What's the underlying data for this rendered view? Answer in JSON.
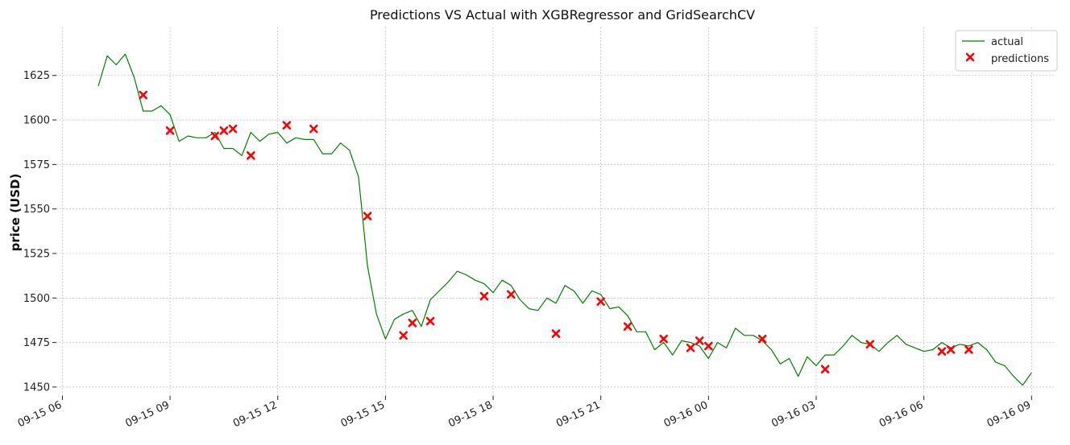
{
  "chart_data": {
    "type": "line",
    "title": "Predictions VS Actual with XGBRegressor and GridSearchCV",
    "xlabel": "",
    "ylabel": "price (USD)",
    "ylim": [
      1445,
      1652
    ],
    "xlim": [
      "2000-09-15 05:50",
      "2000-09-16 09:40"
    ],
    "yticks": [
      1450,
      1475,
      1500,
      1525,
      1550,
      1575,
      1600,
      1625
    ],
    "xticks": [
      {
        "t": "2000-09-15 06:00",
        "label": "09-15 06"
      },
      {
        "t": "2000-09-15 09:00",
        "label": "09-15 09"
      },
      {
        "t": "2000-09-15 12:00",
        "label": "09-15 12"
      },
      {
        "t": "2000-09-15 15:00",
        "label": "09-15 15"
      },
      {
        "t": "2000-09-15 18:00",
        "label": "09-15 18"
      },
      {
        "t": "2000-09-15 21:00",
        "label": "09-15 21"
      },
      {
        "t": "2000-09-16 00:00",
        "label": "09-16 00"
      },
      {
        "t": "2000-09-16 03:00",
        "label": "09-16 03"
      },
      {
        "t": "2000-09-16 06:00",
        "label": "09-16 06"
      },
      {
        "t": "2000-09-16 09:00",
        "label": "09-16 09"
      }
    ],
    "grid": true,
    "legend_position": "top-right",
    "colors": {
      "actual": "#008000",
      "predictions": "#ff0000"
    },
    "series": [
      {
        "name": "actual",
        "type": "line",
        "color": "#008000",
        "points": [
          [
            "2000-09-15 07:00",
            1619
          ],
          [
            "2000-09-15 07:15",
            1636
          ],
          [
            "2000-09-15 07:30",
            1631
          ],
          [
            "2000-09-15 07:45",
            1637
          ],
          [
            "2000-09-15 08:00",
            1624
          ],
          [
            "2000-09-15 08:15",
            1605
          ],
          [
            "2000-09-15 08:30",
            1605
          ],
          [
            "2000-09-15 08:45",
            1608
          ],
          [
            "2000-09-15 09:00",
            1603
          ],
          [
            "2000-09-15 09:15",
            1588
          ],
          [
            "2000-09-15 09:30",
            1591
          ],
          [
            "2000-09-15 09:45",
            1590
          ],
          [
            "2000-09-15 10:00",
            1590
          ],
          [
            "2000-09-15 10:15",
            1593
          ],
          [
            "2000-09-15 10:30",
            1584
          ],
          [
            "2000-09-15 10:45",
            1584
          ],
          [
            "2000-09-15 11:00",
            1580
          ],
          [
            "2000-09-15 11:15",
            1593
          ],
          [
            "2000-09-15 11:30",
            1588
          ],
          [
            "2000-09-15 11:45",
            1592
          ],
          [
            "2000-09-15 12:00",
            1593
          ],
          [
            "2000-09-15 12:15",
            1587
          ],
          [
            "2000-09-15 12:30",
            1590
          ],
          [
            "2000-09-15 12:45",
            1589
          ],
          [
            "2000-09-15 13:00",
            1589
          ],
          [
            "2000-09-15 13:15",
            1581
          ],
          [
            "2000-09-15 13:30",
            1581
          ],
          [
            "2000-09-15 13:45",
            1587
          ],
          [
            "2000-09-15 14:00",
            1583
          ],
          [
            "2000-09-15 14:15",
            1568
          ],
          [
            "2000-09-15 14:30",
            1518
          ],
          [
            "2000-09-15 14:45",
            1491
          ],
          [
            "2000-09-15 15:00",
            1477
          ],
          [
            "2000-09-15 15:15",
            1488
          ],
          [
            "2000-09-15 15:30",
            1491
          ],
          [
            "2000-09-15 15:45",
            1493
          ],
          [
            "2000-09-15 16:00",
            1484
          ],
          [
            "2000-09-15 16:15",
            1499
          ],
          [
            "2000-09-15 16:30",
            1504
          ],
          [
            "2000-09-15 16:45",
            1509
          ],
          [
            "2000-09-15 17:00",
            1515
          ],
          [
            "2000-09-15 17:15",
            1513
          ],
          [
            "2000-09-15 17:30",
            1510
          ],
          [
            "2000-09-15 17:45",
            1508
          ],
          [
            "2000-09-15 18:00",
            1503
          ],
          [
            "2000-09-15 18:15",
            1510
          ],
          [
            "2000-09-15 18:30",
            1507
          ],
          [
            "2000-09-15 18:45",
            1499
          ],
          [
            "2000-09-15 19:00",
            1494
          ],
          [
            "2000-09-15 19:15",
            1493
          ],
          [
            "2000-09-15 19:30",
            1500
          ],
          [
            "2000-09-15 19:45",
            1497
          ],
          [
            "2000-09-15 20:00",
            1507
          ],
          [
            "2000-09-15 20:15",
            1504
          ],
          [
            "2000-09-15 20:30",
            1497
          ],
          [
            "2000-09-15 20:45",
            1504
          ],
          [
            "2000-09-15 21:00",
            1502
          ],
          [
            "2000-09-15 21:15",
            1494
          ],
          [
            "2000-09-15 21:30",
            1495
          ],
          [
            "2000-09-15 21:45",
            1490
          ],
          [
            "2000-09-15 22:00",
            1481
          ],
          [
            "2000-09-15 22:15",
            1481
          ],
          [
            "2000-09-15 22:30",
            1471
          ],
          [
            "2000-09-15 22:45",
            1475
          ],
          [
            "2000-09-15 23:00",
            1468
          ],
          [
            "2000-09-15 23:15",
            1476
          ],
          [
            "2000-09-15 23:30",
            1475
          ],
          [
            "2000-09-15 23:45",
            1473
          ],
          [
            "2000-09-16 00:00",
            1466
          ],
          [
            "2000-09-16 00:15",
            1475
          ],
          [
            "2000-09-16 00:30",
            1472
          ],
          [
            "2000-09-16 00:45",
            1483
          ],
          [
            "2000-09-16 01:00",
            1479
          ],
          [
            "2000-09-16 01:15",
            1479
          ],
          [
            "2000-09-16 01:30",
            1476
          ],
          [
            "2000-09-16 01:45",
            1471
          ],
          [
            "2000-09-16 02:00",
            1463
          ],
          [
            "2000-09-16 02:15",
            1466
          ],
          [
            "2000-09-16 02:30",
            1456
          ],
          [
            "2000-09-16 02:45",
            1467
          ],
          [
            "2000-09-16 03:00",
            1462
          ],
          [
            "2000-09-16 03:15",
            1468
          ],
          [
            "2000-09-16 03:30",
            1468
          ],
          [
            "2000-09-16 03:45",
            1473
          ],
          [
            "2000-09-16 04:00",
            1479
          ],
          [
            "2000-09-16 04:15",
            1475
          ],
          [
            "2000-09-16 04:30",
            1474
          ],
          [
            "2000-09-16 04:45",
            1470
          ],
          [
            "2000-09-16 05:00",
            1475
          ],
          [
            "2000-09-16 05:15",
            1479
          ],
          [
            "2000-09-16 05:30",
            1474
          ],
          [
            "2000-09-16 05:45",
            1472
          ],
          [
            "2000-09-16 06:00",
            1470
          ],
          [
            "2000-09-16 06:15",
            1471
          ],
          [
            "2000-09-16 06:30",
            1475
          ],
          [
            "2000-09-16 06:45",
            1472
          ],
          [
            "2000-09-16 07:00",
            1474
          ],
          [
            "2000-09-16 07:15",
            1473
          ],
          [
            "2000-09-16 07:30",
            1475
          ],
          [
            "2000-09-16 07:45",
            1471
          ],
          [
            "2000-09-16 08:00",
            1464
          ],
          [
            "2000-09-16 08:15",
            1462
          ],
          [
            "2000-09-16 08:30",
            1456
          ],
          [
            "2000-09-16 08:45",
            1451
          ],
          [
            "2000-09-16 09:00",
            1458
          ]
        ]
      },
      {
        "name": "predictions",
        "type": "scatter",
        "marker": "x",
        "color": "#ff0000",
        "points": [
          [
            "2000-09-15 08:15",
            1614
          ],
          [
            "2000-09-15 09:00",
            1594
          ],
          [
            "2000-09-15 10:15",
            1591
          ],
          [
            "2000-09-15 10:30",
            1594
          ],
          [
            "2000-09-15 10:45",
            1595
          ],
          [
            "2000-09-15 11:15",
            1580
          ],
          [
            "2000-09-15 12:15",
            1597
          ],
          [
            "2000-09-15 13:00",
            1595
          ],
          [
            "2000-09-15 14:30",
            1546
          ],
          [
            "2000-09-15 15:30",
            1479
          ],
          [
            "2000-09-15 15:45",
            1486
          ],
          [
            "2000-09-15 16:15",
            1487
          ],
          [
            "2000-09-15 17:45",
            1501
          ],
          [
            "2000-09-15 18:30",
            1502
          ],
          [
            "2000-09-15 19:45",
            1480
          ],
          [
            "2000-09-15 21:00",
            1498
          ],
          [
            "2000-09-15 21:45",
            1484
          ],
          [
            "2000-09-15 22:45",
            1477
          ],
          [
            "2000-09-15 23:30",
            1472
          ],
          [
            "2000-09-15 23:45",
            1476
          ],
          [
            "2000-09-16 00:00",
            1473
          ],
          [
            "2000-09-16 01:30",
            1477
          ],
          [
            "2000-09-16 03:15",
            1460
          ],
          [
            "2000-09-16 04:30",
            1474
          ],
          [
            "2000-09-16 06:30",
            1470
          ],
          [
            "2000-09-16 06:45",
            1471
          ],
          [
            "2000-09-16 07:15",
            1471
          ]
        ]
      }
    ]
  }
}
